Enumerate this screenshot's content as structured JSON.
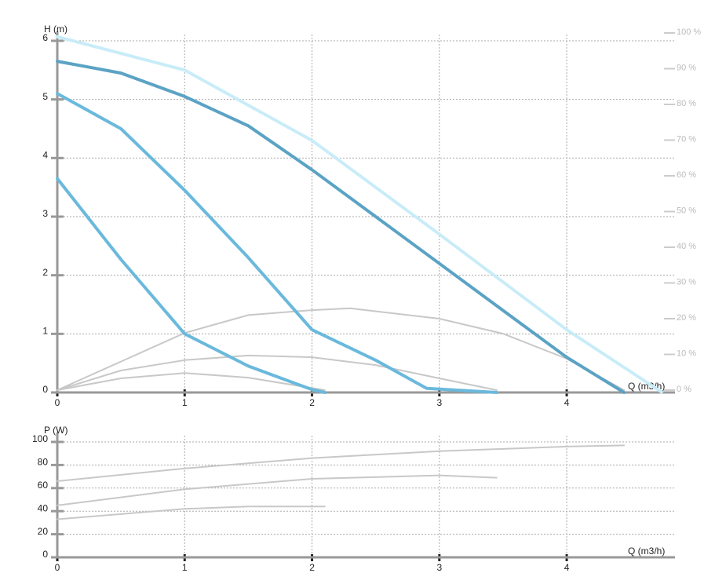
{
  "chart_data": [
    {
      "type": "line",
      "y_label": "H (m)",
      "x_label": "Q (m3/h)",
      "grid": true,
      "xlim": [
        0,
        4.85
      ],
      "xticks": [
        0,
        1,
        2,
        3,
        4
      ],
      "ylim": [
        0,
        6
      ],
      "yticks": [
        0,
        1,
        2,
        3,
        4,
        5,
        6
      ],
      "y2lim": [
        0,
        100
      ],
      "y2ticks": [
        {
          "value": 0,
          "label": "0 %"
        },
        {
          "value": 10,
          "label": "10 %"
        },
        {
          "value": 20,
          "label": "20 %"
        },
        {
          "value": 30,
          "label": "30 %"
        },
        {
          "value": 40,
          "label": "40 %"
        },
        {
          "value": 50,
          "label": "50 %"
        },
        {
          "value": 60,
          "label": "60 %"
        },
        {
          "value": 70,
          "label": "70 %"
        },
        {
          "value": 80,
          "label": "80 %"
        },
        {
          "value": 90,
          "label": "90 %"
        },
        {
          "value": 100,
          "label": "100 %"
        }
      ],
      "series": [
        {
          "color": "#c8ecf8",
          "style": "dotted",
          "x": [
            0,
            1,
            2,
            3,
            4,
            4.75
          ],
          "values": [
            6.07,
            5.5,
            4.3,
            2.7,
            1.07,
            0
          ]
        },
        {
          "color": "#c8c8c8",
          "style": "thin",
          "axis": "y2",
          "x": [
            0,
            0.5,
            1,
            1.5,
            2,
            2.3,
            3,
            3.5,
            4,
            4.45
          ],
          "values": [
            0,
            8,
            16,
            21,
            22.4,
            22.9,
            20,
            15.8,
            8.8,
            0
          ]
        },
        {
          "color": "#c8c8c8",
          "style": "thin",
          "axis": "y2",
          "x": [
            0,
            0.5,
            1,
            1.5,
            2,
            2.5,
            3,
            3.45
          ],
          "values": [
            0,
            5.5,
            8.4,
            9.7,
            9.2,
            7,
            3.3,
            0
          ]
        },
        {
          "color": "#c8c8c8",
          "style": "thin",
          "axis": "y2",
          "x": [
            0,
            0.5,
            1,
            1.5,
            2.1
          ],
          "values": [
            0,
            3.3,
            4.8,
            3.5,
            0
          ]
        },
        {
          "color": "#5ba3c5",
          "style": "thick",
          "x": [
            0,
            0.5,
            1,
            1.5,
            2,
            2.5,
            3,
            3.5,
            4,
            4.45
          ],
          "values": [
            5.65,
            5.45,
            5.05,
            4.55,
            3.8,
            3.0,
            2.2,
            1.4,
            0.6,
            0
          ]
        },
        {
          "color": "#6ab9dc",
          "style": "thick",
          "x": [
            0,
            0.5,
            1,
            1.5,
            2,
            2.5,
            2.9,
            3.45
          ],
          "values": [
            5.1,
            4.5,
            3.45,
            2.3,
            1.07,
            0.55,
            0.07,
            0
          ]
        },
        {
          "color": "#6ab9dc",
          "style": "thick",
          "x": [
            0,
            0.5,
            1,
            1.5,
            2,
            2.1
          ],
          "values": [
            3.65,
            2.27,
            1.0,
            0.45,
            0.05,
            0
          ]
        }
      ]
    },
    {
      "type": "line",
      "y_label": "P (W)",
      "x_label": "Q (m3/h)",
      "grid": true,
      "xlim": [
        0,
        4.85
      ],
      "xticks": [
        0,
        1,
        2,
        3,
        4
      ],
      "ylim": [
        0,
        100
      ],
      "yticks": [
        0,
        20,
        40,
        60,
        80,
        100
      ],
      "series": [
        {
          "color": "#c8c8c8",
          "style": "thin",
          "x": [
            0,
            1,
            2,
            3,
            4,
            4.45
          ],
          "values": [
            66,
            77,
            86,
            92,
            96,
            97
          ]
        },
        {
          "color": "#c8c8c8",
          "style": "thin",
          "x": [
            0,
            1,
            2,
            3,
            3.45
          ],
          "values": [
            45,
            59,
            68,
            71,
            69
          ]
        },
        {
          "color": "#c8c8c8",
          "style": "thin",
          "x": [
            0,
            1,
            1.5,
            2.1
          ],
          "values": [
            33,
            42,
            44,
            44
          ]
        }
      ]
    }
  ]
}
